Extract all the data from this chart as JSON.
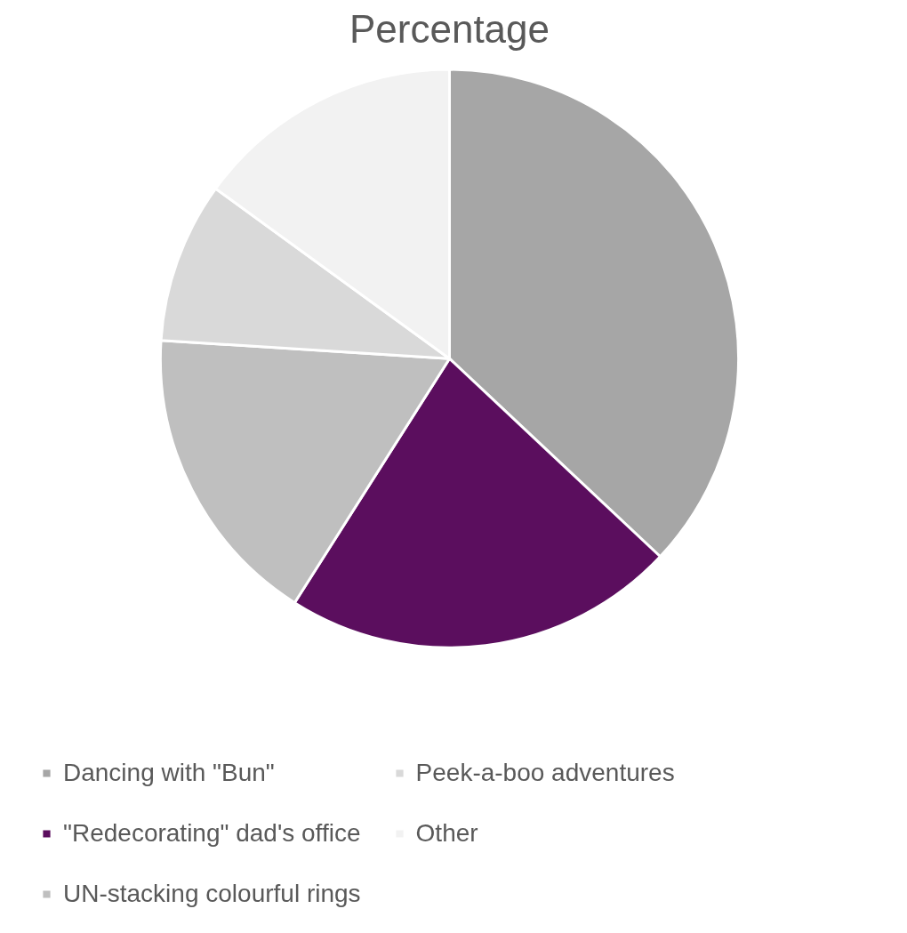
{
  "chart_data": {
    "type": "pie",
    "title": "Percentage",
    "categories": [
      "Dancing with \"Bun\"",
      "\"Redecorating\" dad's office",
      "UN-stacking colourful rings",
      "Peek-a-boo adventures",
      "Other"
    ],
    "values": [
      37,
      22,
      17,
      9,
      15
    ],
    "colors": [
      "#a6a6a6",
      "#5b0e5e",
      "#bfbfbf",
      "#d9d9d9",
      "#f2f2f2"
    ],
    "legend": "bottom"
  }
}
